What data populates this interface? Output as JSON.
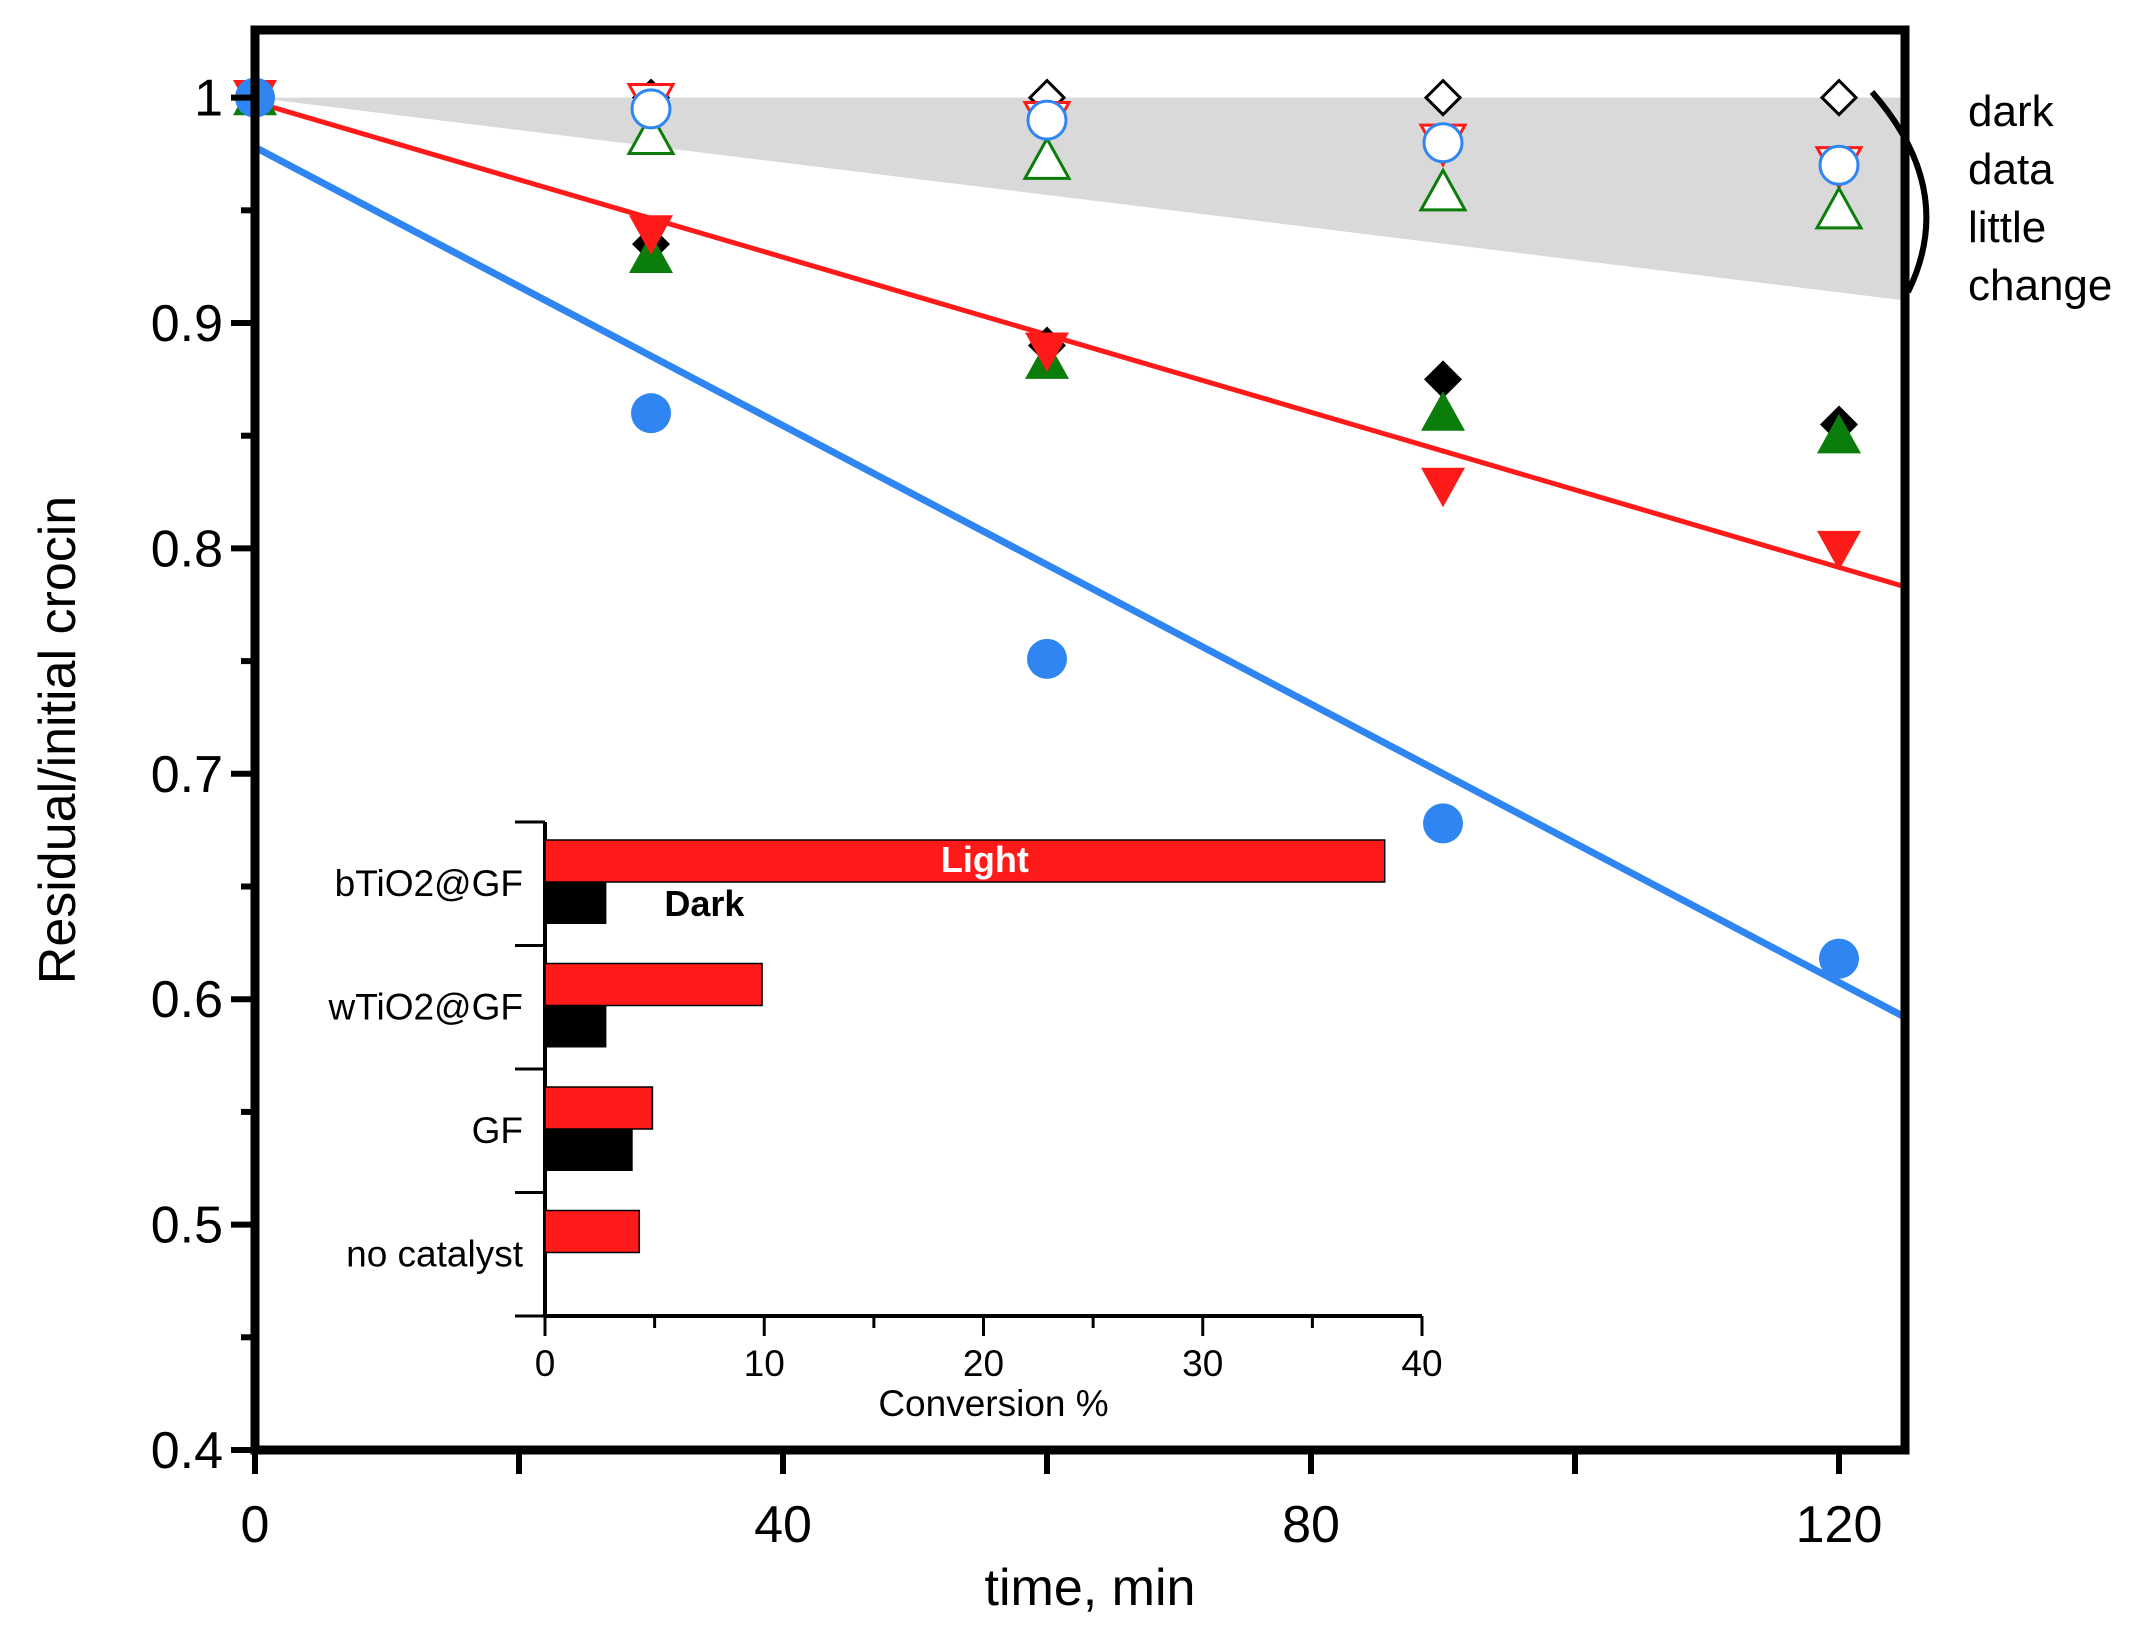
{
  "chart_data": [
    {
      "type": "scatter",
      "title": "",
      "xlabel": "time, min",
      "ylabel": "Residual/initial crocin",
      "xlim": [
        0,
        125
      ],
      "ylim": [
        0.4,
        1.03
      ],
      "xticks": [
        0,
        40,
        80,
        120
      ],
      "xtick_labels": [
        "0",
        "40",
        "80",
        "120"
      ],
      "yticks": [
        0.4,
        0.5,
        0.6,
        0.7,
        0.8,
        0.9,
        1.0
      ],
      "ytick_labels": [
        "0.4",
        "0.5",
        "0.6",
        "0.7",
        "0.8",
        "0.9",
        "1"
      ],
      "grid": false,
      "dark_region": {
        "x": [
          0,
          125
        ],
        "y_top": [
          1.0,
          1.0
        ],
        "y_bottom": [
          1.0,
          0.91
        ],
        "color": "#d9d9d9"
      },
      "series": [
        {
          "name": "light diamond",
          "marker": "diamond",
          "filled": true,
          "color": "#000000",
          "x": [
            0,
            30,
            60,
            90,
            120
          ],
          "y": [
            1.0,
            0.935,
            0.89,
            0.875,
            0.855
          ]
        },
        {
          "name": "light triangle up",
          "marker": "triangle-up",
          "filled": true,
          "color": "#0a7d0a",
          "x": [
            0,
            30,
            60,
            90,
            120
          ],
          "y": [
            1.0,
            0.93,
            0.883,
            0.86,
            0.85
          ]
        },
        {
          "name": "light triangle down",
          "marker": "triangle-down",
          "filled": true,
          "color": "#ff1a1a",
          "x": [
            0,
            30,
            60,
            90,
            120
          ],
          "y": [
            1.0,
            0.94,
            0.888,
            0.828,
            0.8
          ]
        },
        {
          "name": "light circle",
          "marker": "circle",
          "filled": true,
          "color": "#2f86f2",
          "x": [
            0,
            30,
            60,
            90,
            120
          ],
          "y": [
            1.0,
            0.86,
            0.751,
            0.678,
            0.618
          ]
        },
        {
          "name": "dark diamond",
          "marker": "diamond",
          "filled": false,
          "color": "#000000",
          "x": [
            30,
            60,
            90,
            120
          ],
          "y": [
            1.0,
            1.0,
            1.0,
            1.0
          ]
        },
        {
          "name": "dark triangle down",
          "marker": "triangle-down",
          "filled": false,
          "color": "#ff1a1a",
          "x": [
            30,
            60,
            90,
            120
          ],
          "y": [
            0.998,
            0.99,
            0.98,
            0.97
          ]
        },
        {
          "name": "dark triangle up",
          "marker": "triangle-up",
          "filled": false,
          "color": "#0a7d0a",
          "x": [
            30,
            60,
            90,
            120
          ],
          "y": [
            0.983,
            0.972,
            0.958,
            0.95
          ]
        },
        {
          "name": "dark circle",
          "marker": "circle",
          "filled": false,
          "color": "#2f86f2",
          "x": [
            30,
            60,
            90,
            120
          ],
          "y": [
            0.995,
            0.99,
            0.98,
            0.97
          ]
        }
      ],
      "fits": [
        {
          "name": "red fit",
          "color": "#ff1a1a",
          "x": [
            0,
            125
          ],
          "y": [
            0.998,
            0.783
          ]
        },
        {
          "name": "blue fit",
          "color": "#2f86f2",
          "x": [
            0,
            125
          ],
          "y": [
            0.978,
            0.592
          ]
        }
      ],
      "annotation": {
        "lines": [
          "dark",
          "data",
          "little",
          "change"
        ]
      }
    },
    {
      "type": "bar",
      "orientation": "horizontal",
      "xlabel": "Conversion %",
      "xlim": [
        0,
        40
      ],
      "xticks": [
        0,
        10,
        20,
        30,
        40
      ],
      "xtick_labels": [
        "0",
        "10",
        "20",
        "30",
        "40"
      ],
      "categories": [
        "bTiO2@GF",
        "wTiO2@GF",
        "GF",
        "no catalyst"
      ],
      "series": [
        {
          "name": "Light",
          "color": "#ff1a1a",
          "values": [
            38.3,
            9.9,
            4.9,
            4.3
          ]
        },
        {
          "name": "Dark",
          "color": "#000000",
          "values": [
            2.8,
            2.8,
            4.0,
            0
          ]
        }
      ],
      "bar_labels": {
        "light": "Light",
        "dark": "Dark"
      }
    }
  ]
}
